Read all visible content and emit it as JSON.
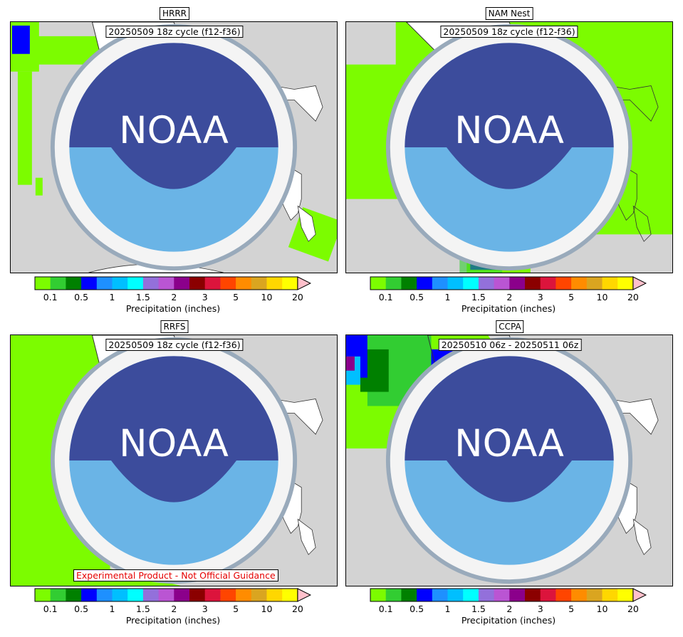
{
  "panels": [
    {
      "title": "HRRR",
      "cycle": "20250509 18z cycle (f12-f36)"
    },
    {
      "title": "NAM Nest",
      "cycle": "20250509 18z cycle (f12-f36)"
    },
    {
      "title": "RRFS",
      "cycle": "20250509 18z cycle (f12-f36)"
    },
    {
      "title": "CCPA",
      "cycle": "20250510 06z - 20250511 06z"
    }
  ],
  "warning": "Experimental Product - Not Official Guidance",
  "logo_text": "NOAA",
  "colorbar": {
    "label": "Precipitation (inches)",
    "ticks": [
      "0.1",
      "0.5",
      "1",
      "1.5",
      "2",
      "3",
      "5",
      "10",
      "20"
    ],
    "colors": [
      "#7cfc00",
      "#32cd32",
      "#008000",
      "#0000ff",
      "#1e90ff",
      "#00bfff",
      "#00ffff",
      "#9370db",
      "#ba55d3",
      "#8b008b",
      "#8b0000",
      "#dc143c",
      "#ff4500",
      "#ff8c00",
      "#daa520",
      "#ffd700",
      "#ffff00"
    ],
    "extend_color": "#ffc0cb"
  },
  "colors": {
    "land": "#ffffff",
    "ocean_background": "#d3d3d3",
    "warning_text": "#e60000"
  },
  "chart_data": [
    {
      "type": "heatmap",
      "title": "HRRR",
      "subtitle": "20250509 18z cycle (f12-f36)",
      "colorbar_label": "Precipitation (inches)",
      "coverage": "sparse light precipitation mainly north and west; heavier cores near top center"
    },
    {
      "type": "heatmap",
      "title": "NAM Nest",
      "subtitle": "20250509 18z cycle (f12-f36)",
      "colorbar_label": "Precipitation (inches)",
      "coverage": "widespread light precipitation over most of domain; heavier near top and bottom"
    },
    {
      "type": "heatmap",
      "title": "RRFS",
      "subtitle": "20250509 18z cycle (f12-f36)",
      "colorbar_label": "Precipitation (inches)",
      "coverage": "light precipitation over western half; heavier band near top center"
    },
    {
      "type": "heatmap",
      "title": "CCPA",
      "subtitle": "20250510 06z - 20250511 06z",
      "colorbar_label": "Precipitation (inches)",
      "coverage": "observed heavy precipitation northwest and along west coast band"
    }
  ]
}
